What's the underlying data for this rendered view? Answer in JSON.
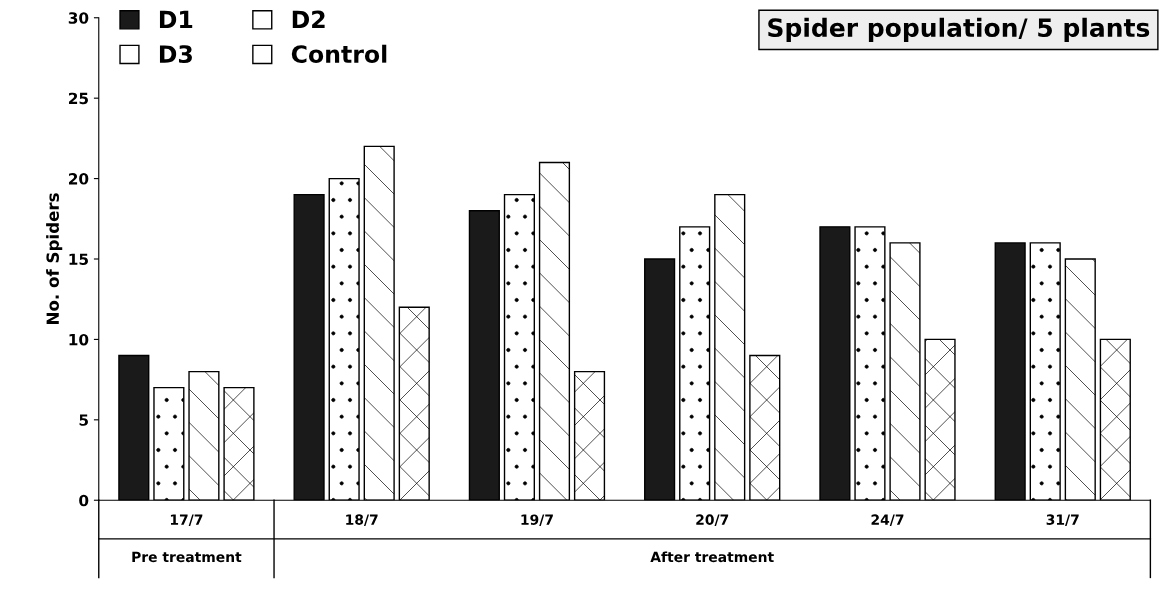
{
  "chart_data": {
    "type": "bar",
    "title": "Spider population/ 5 plants",
    "ylabel": "No. of Spiders",
    "categories": [
      "17/7",
      "18/7",
      "19/7",
      "20/7",
      "24/7",
      "31/7"
    ],
    "series": [
      {
        "name": "D1",
        "color": "#1a1a1a",
        "values": [
          9,
          19,
          18,
          15,
          17,
          16
        ]
      },
      {
        "name": "D2",
        "color": "#ffffff",
        "values": [
          7,
          20,
          19,
          17,
          17,
          16
        ]
      },
      {
        "name": "D3",
        "color": "#ffffff",
        "values": [
          8,
          22,
          21,
          19,
          16,
          15
        ]
      },
      {
        "name": "Control",
        "color": "#ffffff",
        "values": [
          7,
          12,
          8,
          9,
          10,
          10
        ]
      }
    ],
    "ylim": [
      0,
      30
    ],
    "yticks": [
      0,
      5,
      10,
      15,
      20,
      25,
      30
    ],
    "grid": false,
    "legend": "top left",
    "annotations": [
      "Pre treatment",
      "After treatment"
    ]
  }
}
